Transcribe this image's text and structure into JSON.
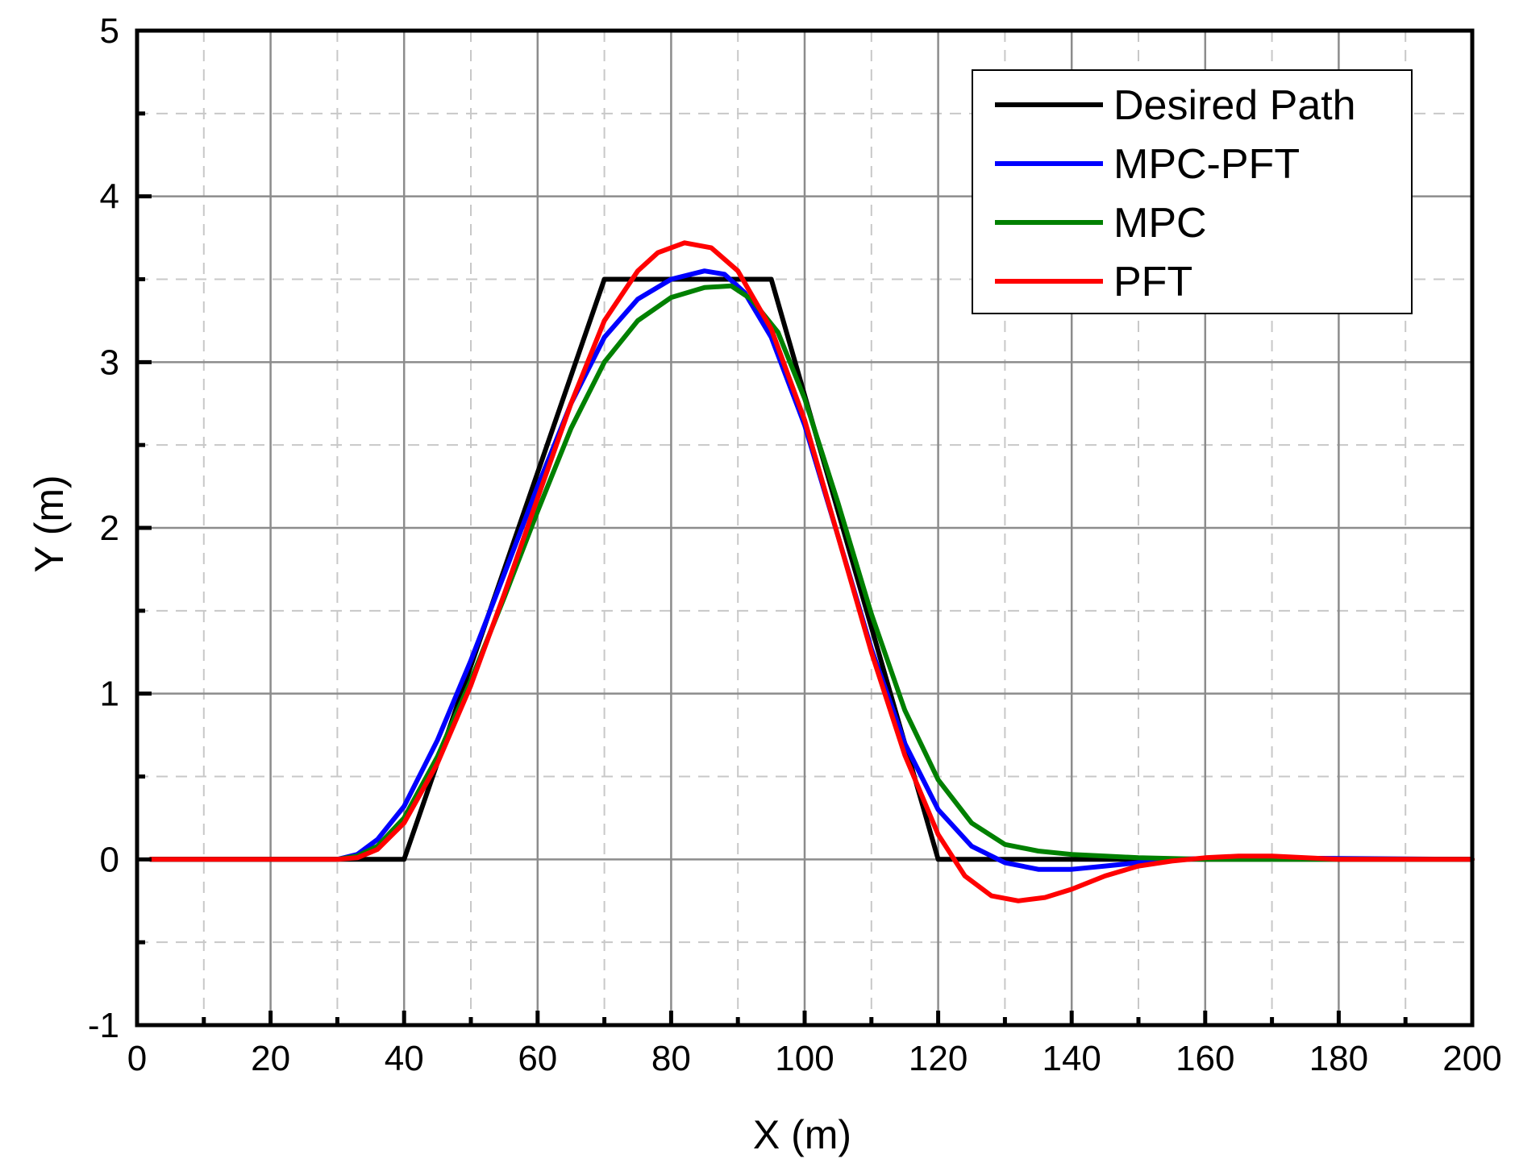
{
  "chart_data": {
    "type": "line",
    "title": "",
    "xlabel": "X (m)",
    "ylabel": "Y (m)",
    "xlim": [
      0,
      200
    ],
    "ylim": [
      -1,
      5
    ],
    "x_major_ticks": [
      0,
      20,
      40,
      60,
      80,
      100,
      120,
      140,
      160,
      180,
      200
    ],
    "x_tick_labels": [
      "0",
      "20",
      "40",
      "60",
      "80",
      "100",
      "120",
      "140",
      "160",
      "180",
      "200"
    ],
    "y_major_ticks": [
      -1,
      0,
      1,
      2,
      3,
      4,
      5
    ],
    "y_tick_labels": [
      "-1",
      "0",
      "1",
      "2",
      "3",
      "4",
      "5"
    ],
    "x_minor_ticks": [
      10,
      30,
      50,
      70,
      90,
      110,
      130,
      150,
      170,
      190
    ],
    "y_minor_ticks": [
      -0.5,
      0.5,
      1.5,
      2.5,
      3.5,
      4.5
    ],
    "grid": true,
    "legend_position": "top-right",
    "series": [
      {
        "name": "Desired Path",
        "color": "#000000",
        "points": [
          [
            2,
            0
          ],
          [
            40,
            0
          ],
          [
            70,
            3.5
          ],
          [
            95,
            3.5
          ],
          [
            120,
            0
          ],
          [
            200,
            0
          ]
        ]
      },
      {
        "name": "MPC-PFT",
        "color": "#0000ff",
        "points": [
          [
            2,
            0
          ],
          [
            27,
            0
          ],
          [
            30,
            0
          ],
          [
            33,
            0.03
          ],
          [
            36,
            0.12
          ],
          [
            40,
            0.32
          ],
          [
            45,
            0.72
          ],
          [
            50,
            1.2
          ],
          [
            55,
            1.72
          ],
          [
            60,
            2.25
          ],
          [
            65,
            2.75
          ],
          [
            70,
            3.15
          ],
          [
            75,
            3.38
          ],
          [
            80,
            3.5
          ],
          [
            85,
            3.55
          ],
          [
            88,
            3.53
          ],
          [
            91,
            3.42
          ],
          [
            95,
            3.15
          ],
          [
            100,
            2.62
          ],
          [
            105,
            1.95
          ],
          [
            110,
            1.27
          ],
          [
            115,
            0.7
          ],
          [
            120,
            0.3
          ],
          [
            125,
            0.08
          ],
          [
            130,
            -0.02
          ],
          [
            135,
            -0.06
          ],
          [
            140,
            -0.06
          ],
          [
            145,
            -0.04
          ],
          [
            150,
            -0.02
          ],
          [
            155,
            0
          ],
          [
            165,
            0.01
          ],
          [
            200,
            0
          ]
        ]
      },
      {
        "name": "MPC",
        "color": "#008000",
        "points": [
          [
            2,
            0
          ],
          [
            27,
            0
          ],
          [
            30,
            0
          ],
          [
            33,
            0.02
          ],
          [
            36,
            0.08
          ],
          [
            40,
            0.25
          ],
          [
            45,
            0.62
          ],
          [
            50,
            1.08
          ],
          [
            55,
            1.58
          ],
          [
            60,
            2.1
          ],
          [
            65,
            2.6
          ],
          [
            70,
            3.0
          ],
          [
            75,
            3.25
          ],
          [
            80,
            3.39
          ],
          [
            85,
            3.45
          ],
          [
            89,
            3.46
          ],
          [
            92,
            3.38
          ],
          [
            96,
            3.18
          ],
          [
            100,
            2.78
          ],
          [
            105,
            2.15
          ],
          [
            110,
            1.48
          ],
          [
            115,
            0.9
          ],
          [
            120,
            0.48
          ],
          [
            125,
            0.22
          ],
          [
            130,
            0.09
          ],
          [
            135,
            0.05
          ],
          [
            140,
            0.03
          ],
          [
            145,
            0.02
          ],
          [
            150,
            0.01
          ],
          [
            160,
            0
          ],
          [
            200,
            0
          ]
        ]
      },
      {
        "name": "PFT",
        "color": "#ff0000",
        "points": [
          [
            2,
            0
          ],
          [
            27,
            0
          ],
          [
            30,
            0
          ],
          [
            33,
            0.01
          ],
          [
            36,
            0.06
          ],
          [
            40,
            0.22
          ],
          [
            45,
            0.58
          ],
          [
            50,
            1.05
          ],
          [
            55,
            1.6
          ],
          [
            60,
            2.18
          ],
          [
            65,
            2.75
          ],
          [
            70,
            3.25
          ],
          [
            75,
            3.55
          ],
          [
            78,
            3.66
          ],
          [
            82,
            3.72
          ],
          [
            86,
            3.69
          ],
          [
            90,
            3.55
          ],
          [
            95,
            3.2
          ],
          [
            100,
            2.65
          ],
          [
            105,
            1.95
          ],
          [
            110,
            1.25
          ],
          [
            115,
            0.63
          ],
          [
            120,
            0.15
          ],
          [
            124,
            -0.1
          ],
          [
            128,
            -0.22
          ],
          [
            132,
            -0.25
          ],
          [
            136,
            -0.23
          ],
          [
            140,
            -0.18
          ],
          [
            145,
            -0.1
          ],
          [
            150,
            -0.04
          ],
          [
            155,
            -0.01
          ],
          [
            160,
            0.01
          ],
          [
            165,
            0.02
          ],
          [
            170,
            0.02
          ],
          [
            175,
            0.01
          ],
          [
            180,
            0
          ],
          [
            200,
            0
          ]
        ]
      }
    ]
  }
}
